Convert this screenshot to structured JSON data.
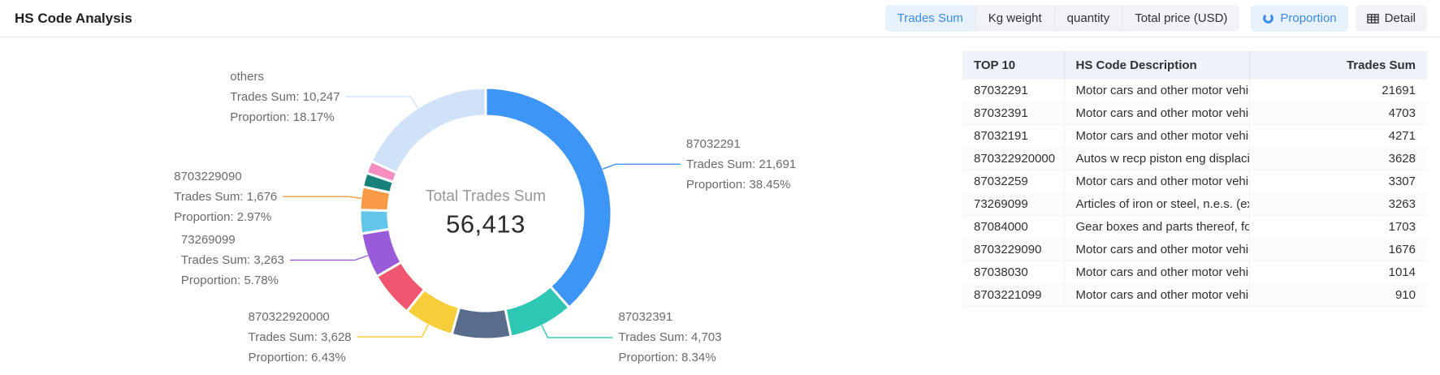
{
  "header": {
    "title": "HS Code Analysis",
    "metric_tabs": [
      {
        "label": "Trades Sum",
        "active": true
      },
      {
        "label": "Kg weight",
        "active": false
      },
      {
        "label": "quantity",
        "active": false
      },
      {
        "label": "Total price (USD)",
        "active": false
      }
    ],
    "view_tabs": [
      {
        "label": "Proportion",
        "icon": "pie-chart-icon",
        "active": true
      },
      {
        "label": "Detail",
        "icon": "table-icon",
        "active": false
      }
    ]
  },
  "chart_data": {
    "type": "pie",
    "title": "Total Trades Sum",
    "center": {
      "label": "Total Trades Sum",
      "value": "56,413"
    },
    "total_value": 56413,
    "label_prefixes": {
      "sum": "Trades Sum: ",
      "proportion": "Proportion: "
    },
    "legend_position": "none",
    "segments": [
      {
        "name": "87032291",
        "value": 21691,
        "display_value": "21,691",
        "proportion": "38.45%",
        "color": "#3D95F6",
        "labeled": true
      },
      {
        "name": "87032391",
        "value": 4703,
        "display_value": "4,703",
        "proportion": "8.34%",
        "color": "#2EC7B4",
        "labeled": true
      },
      {
        "name": "87032191",
        "value": 4271,
        "color": "#5A6C8C",
        "labeled": false
      },
      {
        "name": "870322920000",
        "value": 3628,
        "display_value": "3,628",
        "proportion": "6.43%",
        "color": "#F7CE3A",
        "labeled": true
      },
      {
        "name": "87032259",
        "value": 3307,
        "color": "#F0566E",
        "labeled": false
      },
      {
        "name": "73269099",
        "value": 3263,
        "display_value": "3,263",
        "proportion": "5.78%",
        "color": "#9A5BDB",
        "labeled": true
      },
      {
        "name": "87084000",
        "value": 1703,
        "color": "#62C6EA",
        "labeled": false
      },
      {
        "name": "8703229090",
        "value": 1676,
        "display_value": "1,676",
        "proportion": "2.97%",
        "color": "#F99B45",
        "labeled": true
      },
      {
        "name": "87038030",
        "value": 1014,
        "color": "#18807A",
        "labeled": false
      },
      {
        "name": "8703221099",
        "value": 910,
        "color": "#F78EC1",
        "labeled": false
      },
      {
        "name": "others",
        "value": 10247,
        "display_value": "10,247",
        "proportion": "18.17%",
        "color": "#CFE2F8",
        "labeled": true
      }
    ]
  },
  "table": {
    "columns": [
      "TOP 10",
      "HS Code Description",
      "Trades Sum"
    ],
    "rows": [
      {
        "code": "87032291",
        "description": "Motor cars and other motor vehicles p...",
        "trades_sum": "21691"
      },
      {
        "code": "87032391",
        "description": "Motor cars and other motor vehicles p...",
        "trades_sum": "4703"
      },
      {
        "code": "87032191",
        "description": "Motor cars and other motor vehicles p...",
        "trades_sum": "4271"
      },
      {
        "code": "870322920000",
        "description": "Autos w recp piston eng displacing > ...",
        "trades_sum": "3628"
      },
      {
        "code": "87032259",
        "description": "Motor cars and other motor vehicles p...",
        "trades_sum": "3307"
      },
      {
        "code": "73269099",
        "description": "Articles of iron or steel, n.e.s. (excludi...",
        "trades_sum": "3263"
      },
      {
        "code": "87084000",
        "description": "Gear boxes and parts thereof, for tract...",
        "trades_sum": "1703"
      },
      {
        "code": "8703229090",
        "description": "Motor cars and other motor vehicles p...",
        "trades_sum": "1676"
      },
      {
        "code": "87038030",
        "description": "Motor cars and other motor vehicles p...",
        "trades_sum": "1014"
      },
      {
        "code": "8703221099",
        "description": "Motor cars and other motor vehicles p...",
        "trades_sum": "910"
      }
    ]
  },
  "colors": {
    "accent": "#3C8CF0",
    "active_tab_bg": "#E7F2FD",
    "tab_bg": "#F1F3F6",
    "table_header_bg": "#EEF3FB"
  }
}
